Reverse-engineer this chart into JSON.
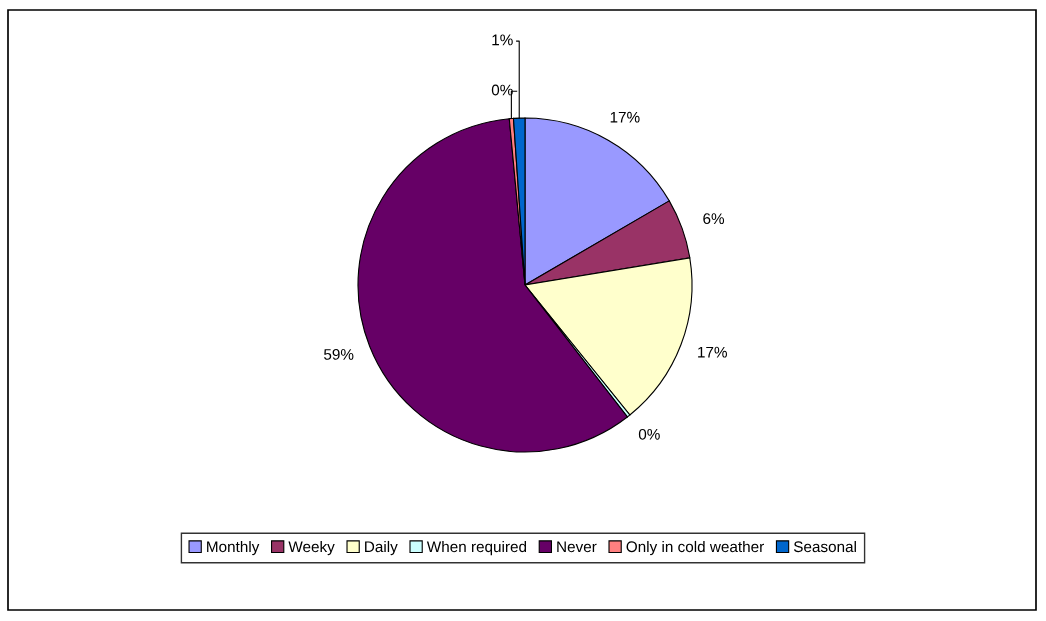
{
  "chart_data": {
    "type": "pie",
    "categories": [
      "Monthly",
      "Weeky",
      "Daily",
      "When required",
      "Never",
      "Only in cold weather",
      "Seasonal"
    ],
    "values": [
      16.6,
      5.8,
      16.8,
      0.3,
      59.0,
      0.4,
      1.1
    ],
    "value_labels": [
      "17%",
      "6%",
      "17%",
      "0%",
      "59%",
      "0%",
      "1%"
    ],
    "colors": [
      "#9999ff",
      "#993366",
      "#ffffcc",
      "#ccffff",
      "#660066",
      "#ff8080",
      "#0066cc"
    ],
    "legend": "bottom"
  }
}
